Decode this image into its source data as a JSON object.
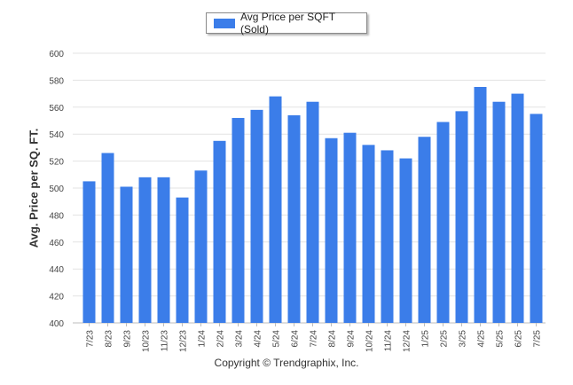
{
  "legend": {
    "label": "Avg Price per SQFT (Sold)"
  },
  "footer": {
    "copyright": "Copyright © Trendgraphix, Inc."
  },
  "colors": {
    "bar": "#3b7de9",
    "grid": "#e3e3e3",
    "axis": "#bdbdbd",
    "legend_border": "#8a8a8a"
  },
  "chart_data": {
    "type": "bar",
    "title": "",
    "xlabel": "",
    "ylabel": "Avg. Price per SQ. FT.",
    "ylim": [
      400,
      600
    ],
    "yticks": [
      400,
      420,
      440,
      460,
      480,
      500,
      520,
      540,
      560,
      580,
      600
    ],
    "grid": true,
    "legend_position": "top-center",
    "categories": [
      "7/23",
      "8/23",
      "9/23",
      "10/23",
      "11/23",
      "12/23",
      "1/24",
      "2/24",
      "3/24",
      "4/24",
      "5/24",
      "6/24",
      "7/24",
      "8/24",
      "9/24",
      "10/24",
      "11/24",
      "12/24",
      "1/25",
      "2/25",
      "3/25",
      "4/25",
      "5/25",
      "6/25",
      "7/25"
    ],
    "series": [
      {
        "name": "Avg Price per SQFT (Sold)",
        "values": [
          505,
          526,
          501,
          508,
          508,
          493,
          513,
          535,
          552,
          558,
          568,
          554,
          564,
          537,
          541,
          532,
          528,
          522,
          538,
          549,
          557,
          575,
          564,
          570,
          555
        ]
      }
    ]
  }
}
